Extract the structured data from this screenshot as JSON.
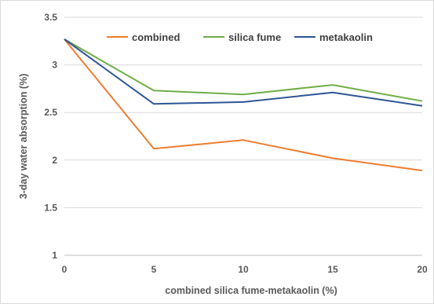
{
  "chart_data": {
    "type": "line",
    "title": "",
    "xlabel": "combined silica fume-metakaolin (%)",
    "ylabel": "3-day water absorption (%)",
    "x": [
      0,
      5,
      10,
      15,
      20
    ],
    "xlim": [
      0,
      20
    ],
    "ylim": [
      1,
      3.5
    ],
    "x_ticks": [
      "0",
      "5",
      "10",
      "15",
      "20"
    ],
    "y_ticks": [
      "1",
      "1.5",
      "2",
      "2.5",
      "3",
      "3.5"
    ],
    "grid": "horizontal",
    "legend_position": "top",
    "series": [
      {
        "name": "combined",
        "color": "#ED7D31",
        "values": [
          3.27,
          2.12,
          2.21,
          2.02,
          1.89
        ]
      },
      {
        "name": "silica fume",
        "color": "#70AD47",
        "values": [
          3.27,
          2.73,
          2.69,
          2.79,
          2.62
        ]
      },
      {
        "name": "metakaolin",
        "color": "#2F5597",
        "values": [
          3.27,
          2.59,
          2.61,
          2.71,
          2.57
        ]
      }
    ]
  }
}
